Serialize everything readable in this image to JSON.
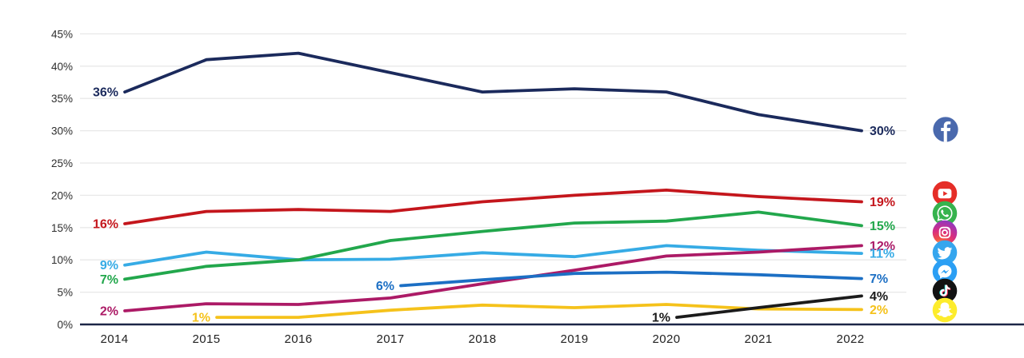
{
  "page": {
    "background": "#ffffff"
  },
  "chart_data": {
    "type": "line",
    "x": [
      2014,
      2015,
      2016,
      2017,
      2018,
      2019,
      2020,
      2021,
      2022
    ],
    "ylim": [
      0,
      45
    ],
    "grid": true,
    "legend_position": "right-icons",
    "y_axis": {
      "unit": "%",
      "ticks": [
        {
          "value": 0,
          "label": "0%"
        },
        {
          "value": 5,
          "label": "5%"
        },
        {
          "value": 10,
          "label": "10%"
        },
        {
          "value": 15,
          "label": "15%"
        },
        {
          "value": 20,
          "label": "20%"
        },
        {
          "value": 25,
          "label": "25%"
        },
        {
          "value": 30,
          "label": "30%"
        },
        {
          "value": 35,
          "label": "35%"
        },
        {
          "value": 40,
          "label": "40%"
        },
        {
          "value": 45,
          "label": "45%"
        }
      ]
    },
    "series": [
      {
        "name": "Facebook",
        "icon": "facebook",
        "color": "#1b2a5c",
        "start_year": 2014,
        "values": [
          36,
          41,
          42,
          39,
          36,
          36.5,
          36,
          32.5,
          30
        ],
        "start_label": "36%",
        "end_label": "30%"
      },
      {
        "name": "YouTube",
        "icon": "youtube",
        "color": "#c4161c",
        "start_year": 2014,
        "values": [
          15.6,
          17.5,
          17.8,
          17.5,
          19,
          20,
          20.8,
          19.8,
          19
        ],
        "start_label": "16%",
        "end_label": "19%"
      },
      {
        "name": "WhatsApp",
        "icon": "whatsapp",
        "color": "#22a74c",
        "start_year": 2014,
        "values": [
          7,
          9,
          10,
          13,
          14.4,
          15.7,
          16,
          17.4,
          15.3
        ],
        "start_label": "7%",
        "end_label": "15%"
      },
      {
        "name": "Instagram",
        "icon": "instagram",
        "color": "#ac1a66",
        "start_year": 2014,
        "values": [
          2.1,
          3.2,
          3.1,
          4.1,
          6.3,
          8.4,
          10.6,
          11.2,
          12.2
        ],
        "start_label": "2%",
        "end_label": "12%"
      },
      {
        "name": "Twitter",
        "icon": "twitter",
        "color": "#36abe5",
        "start_year": 2014,
        "values": [
          9.2,
          11.2,
          10,
          10.1,
          11.1,
          10.5,
          12.2,
          11.5,
          11
        ],
        "start_label": "9%",
        "end_label": "11%"
      },
      {
        "name": "Facebook Messenger",
        "icon": "messenger",
        "color": "#1c6fc4",
        "start_year": 2017,
        "values": [
          6,
          6.9,
          7.9,
          8.1,
          7.7,
          7.1
        ],
        "start_label": "6%",
        "end_label": "7%"
      },
      {
        "name": "TikTok",
        "icon": "tiktok",
        "color": "#1b1b1b",
        "start_year": 2020,
        "values": [
          1.1,
          2.6,
          4.4
        ],
        "start_label": "1%",
        "end_label": "4%"
      },
      {
        "name": "Snapchat",
        "icon": "snapchat",
        "color": "#f5c21b",
        "start_year": 2015,
        "values": [
          1.1,
          1.1,
          2.2,
          3,
          2.6,
          3.1,
          2.4,
          2.3
        ],
        "start_label": "1%",
        "end_label": "2%"
      }
    ],
    "style": {
      "gridline_color": "#e8e8e8",
      "axis_color": "#1c2647",
      "tick_color": "#2e2e2e"
    }
  }
}
